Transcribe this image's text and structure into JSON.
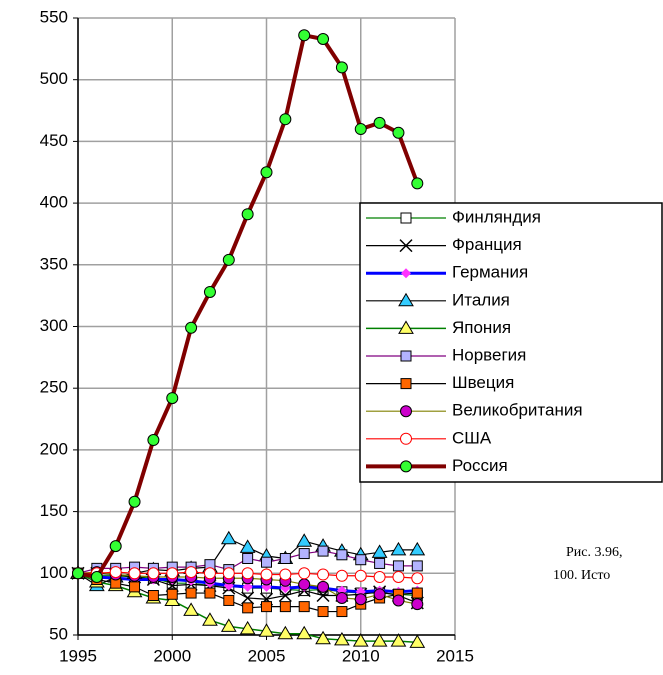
{
  "chart_data": {
    "type": "line",
    "annotations": [
      "Рис. 3.96,",
      "100. Исто"
    ],
    "x": [
      1995,
      1996,
      1997,
      1998,
      1999,
      2000,
      2001,
      2002,
      2003,
      2004,
      2005,
      2006,
      2007,
      2008,
      2009,
      2010,
      2011,
      2012,
      2013
    ],
    "xlim": [
      1995,
      2015
    ],
    "xticks": [
      1995,
      2000,
      2005,
      2010,
      2015
    ],
    "ylim": [
      50,
      550
    ],
    "yticks": [
      50,
      100,
      150,
      200,
      250,
      300,
      350,
      400,
      450,
      500,
      550
    ],
    "grid": true,
    "legend": "right",
    "series": [
      {
        "name": "Финляндия",
        "color": "#008000",
        "marker": "square",
        "marker_color": "#ffffff",
        "line_width": 1.2,
        "values": [
          100,
          98,
          98,
          97,
          96,
          92,
          92,
          90,
          90,
          88,
          88,
          87,
          86,
          87,
          85,
          84,
          84,
          83,
          82
        ]
      },
      {
        "name": "Франция",
        "color": "#000000",
        "marker": "x",
        "marker_color": "#000000",
        "line_width": 1.2,
        "values": [
          100,
          100,
          99,
          97,
          95,
          90,
          91,
          90,
          88,
          80,
          79,
          82,
          86,
          82,
          82,
          83,
          85,
          82,
          76
        ]
      },
      {
        "name": "Германия",
        "color": "#0000ff",
        "marker": "diamond",
        "marker_color": "#ff33ff",
        "line_width": 3,
        "values": [
          100,
          97,
          96,
          95,
          95,
          95,
          94,
          92,
          90,
          89,
          89,
          88,
          89,
          88,
          86,
          85,
          86,
          85,
          86
        ]
      },
      {
        "name": "Италия",
        "color": "#000000",
        "marker": "triangle",
        "marker_color": "#33ccff",
        "line_width": 1.2,
        "values": [
          100,
          90,
          97,
          100,
          103,
          102,
          104,
          105,
          128,
          121,
          114,
          112,
          126,
          122,
          118,
          115,
          117,
          119,
          119
        ]
      },
      {
        "name": "Япония",
        "color": "#008000",
        "marker": "triangle",
        "marker_color": "#ffff66",
        "line_width": 1.5,
        "values": [
          100,
          93,
          90,
          85,
          80,
          78,
          70,
          62,
          57,
          55,
          53,
          51,
          51,
          47,
          46,
          45,
          45,
          45,
          44
        ]
      },
      {
        "name": "Норвегия",
        "color": "#800080",
        "marker": "square",
        "marker_color": "#b3b3ff",
        "line_width": 1.2,
        "values": [
          100,
          104,
          104,
          105,
          104,
          105,
          105,
          107,
          103,
          112,
          109,
          112,
          116,
          118,
          115,
          111,
          108,
          106,
          106
        ]
      },
      {
        "name": "Швеция",
        "color": "#000000",
        "marker": "square",
        "marker_color": "#ff6600",
        "line_width": 1.2,
        "values": [
          100,
          95,
          92,
          89,
          82,
          83,
          84,
          84,
          78,
          72,
          73,
          73,
          73,
          69,
          69,
          75,
          80,
          83,
          84
        ]
      },
      {
        "name": "Великобритания",
        "color": "#808000",
        "marker": "circle",
        "marker_color": "#cc00cc",
        "line_width": 1.2,
        "values": [
          100,
          101,
          99,
          98,
          97,
          97,
          97,
          96,
          96,
          96,
          95,
          94,
          91,
          89,
          80,
          79,
          83,
          78,
          75
        ]
      },
      {
        "name": "США",
        "color": "#ff0000",
        "marker": "circle",
        "marker_color": "#ffffff",
        "line_width": 1.2,
        "values": [
          100,
          100,
          101,
          100,
          100,
          100,
          101,
          100,
          100,
          100,
          99,
          99,
          100,
          99,
          98,
          98,
          97,
          97,
          96
        ]
      },
      {
        "name": "Россия",
        "color": "#800000",
        "marker": "circle",
        "marker_color": "#33ff33",
        "line_width": 4,
        "values": [
          100,
          97,
          122,
          158,
          208,
          242,
          299,
          328,
          354,
          391,
          425,
          468,
          536,
          533,
          510,
          460,
          465,
          457,
          416
        ]
      }
    ]
  }
}
